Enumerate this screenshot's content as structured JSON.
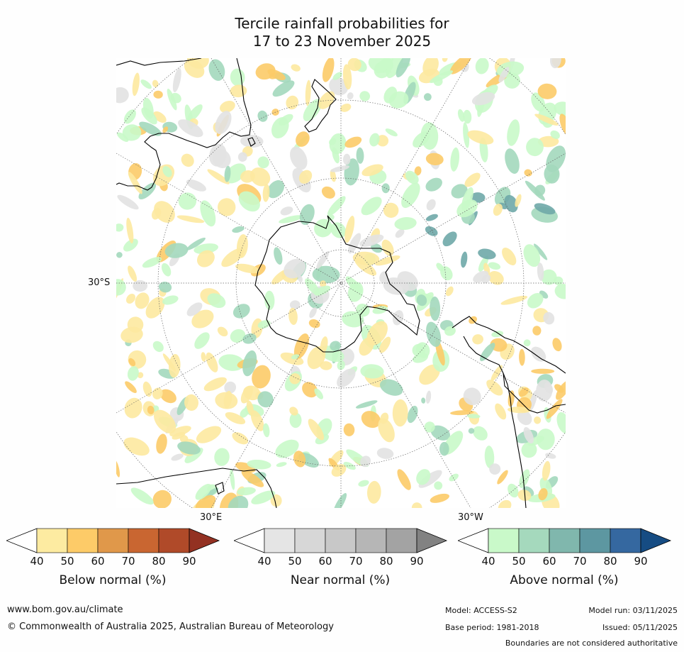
{
  "title_line1": "Tercile rainfall probabilities for",
  "title_line2": "17 to 23 November 2025",
  "map": {
    "lat_label": "30°S",
    "lon_label_left": "30°E",
    "lon_label_right": "30°W",
    "colors": {
      "background": "#ffffff",
      "below": "#fde9a0",
      "below_strong": "#fccb68",
      "near": "#e2e2e2",
      "above": "#c9f9c9",
      "above_mid": "#a3d8bc",
      "above_strong": "#6fa9a9",
      "coast": "#000000"
    }
  },
  "colorbars": [
    {
      "name": "below",
      "label": "Below normal (%)",
      "ticks": [
        "40",
        "50",
        "60",
        "70",
        "80",
        "90"
      ],
      "colors": [
        "#ffffff",
        "#fdeba1",
        "#fdcb68",
        "#e0984a",
        "#c96631",
        "#b04a29",
        "#933122"
      ]
    },
    {
      "name": "near",
      "label": "Near normal (%)",
      "ticks": [
        "40",
        "50",
        "60",
        "70",
        "80",
        "90"
      ],
      "colors": [
        "#ffffff",
        "#e5e5e5",
        "#d7d7d7",
        "#c8c8c8",
        "#b6b6b6",
        "#a3a3a3",
        "#828282"
      ]
    },
    {
      "name": "above",
      "label": "Above normal (%)",
      "ticks": [
        "40",
        "50",
        "60",
        "70",
        "80",
        "90"
      ],
      "colors": [
        "#ffffff",
        "#c9f9c9",
        "#a5d9bd",
        "#80b7ad",
        "#5d97a1",
        "#3568a0",
        "#164c83"
      ]
    }
  ],
  "footer": {
    "url": "www.bom.gov.au/climate",
    "copyright": "© Commonwealth of Australia 2025, Australian Bureau of Meteorology",
    "model": "Model: ACCESS-S2",
    "base_period": "Base period: 1981-2018",
    "model_run": "Model run: 03/11/2025",
    "issued": "Issued: 05/11/2025",
    "disclaimer": "Boundaries are not considered authoritative"
  }
}
